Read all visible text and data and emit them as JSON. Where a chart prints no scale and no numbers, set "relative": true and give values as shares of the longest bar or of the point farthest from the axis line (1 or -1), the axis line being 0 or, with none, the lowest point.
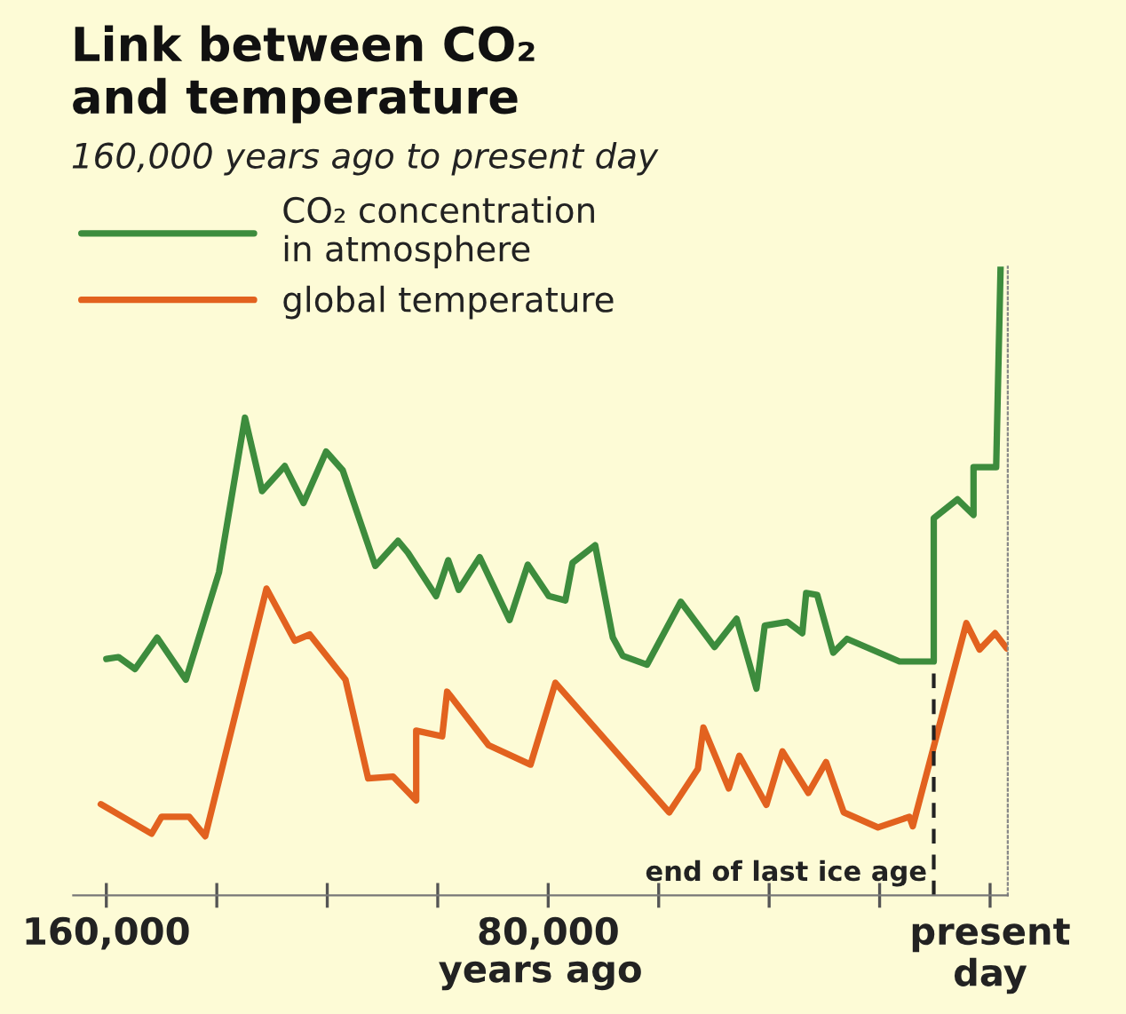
{
  "chart_data": {
    "type": "line",
    "title": "Link between CO₂\nand temperature",
    "subtitle": "160,000 years ago to present day",
    "xlabel": "years ago",
    "relative": true,
    "xlim": [
      166000,
      -3200
    ],
    "xticks": [
      {
        "value": 160000,
        "label": "160,000"
      },
      {
        "value": 140000,
        "label": null
      },
      {
        "value": 120000,
        "label": null
      },
      {
        "value": 100000,
        "label": null
      },
      {
        "value": 80000,
        "label": "80,000"
      },
      {
        "value": 60000,
        "label": null
      },
      {
        "value": 40000,
        "label": null
      },
      {
        "value": 20000,
        "label": null
      },
      {
        "value": 0,
        "label": "present\nday"
      }
    ],
    "legend": "top left",
    "grid": false,
    "marker": "none",
    "line_style": "solid",
    "ref_lines": [
      {
        "axis": "x",
        "value": 10200,
        "label": "end of last ice age",
        "line_style": "dashed",
        "color": "#222222"
      }
    ],
    "series": [
      {
        "name": "CO₂ concentration\nin atmosphere",
        "color": "#3d8c3d",
        "x": [
          160000,
          157800,
          154800,
          150800,
          145600,
          139600,
          134900,
          131800,
          127700,
          124300,
          120200,
          117200,
          111300,
          107200,
          105400,
          100300,
          98100,
          96200,
          92400,
          87000,
          83700,
          79900,
          76900,
          75600,
          71500,
          68300,
          66500,
          62100,
          56000,
          49900,
          45900,
          42300,
          40800,
          36700,
          34000,
          33300,
          31300,
          28400,
          25900,
          16400,
          10200,
          10200,
          5900,
          3000,
          3000,
          -1100,
          -1900
        ],
        "values": [
          0.376,
          0.379,
          0.36,
          0.41,
          0.343,
          0.514,
          0.76,
          0.643,
          0.683,
          0.624,
          0.706,
          0.676,
          0.524,
          0.564,
          0.545,
          0.476,
          0.533,
          0.486,
          0.538,
          0.438,
          0.526,
          0.476,
          0.469,
          0.529,
          0.557,
          0.41,
          0.381,
          0.367,
          0.467,
          0.395,
          0.44,
          0.329,
          0.429,
          0.435,
          0.417,
          0.481,
          0.478,
          0.386,
          0.408,
          0.372,
          0.372,
          0.6,
          0.63,
          0.605,
          0.681,
          0.681,
          1
        ]
      },
      {
        "name": "global temperature",
        "color": "#e2621f",
        "x": [
          161000,
          151800,
          150000,
          145000,
          142100,
          131000,
          125900,
          123200,
          116700,
          112600,
          108100,
          103900,
          103900,
          99200,
          98300,
          90800,
          83200,
          78700,
          58100,
          52900,
          51900,
          47300,
          45400,
          40500,
          37600,
          32900,
          29700,
          26500,
          20300,
          14600,
          14000,
          4300,
          1900,
          -900,
          -3000
        ],
        "values": [
          0.145,
          0.098,
          0.125,
          0.125,
          0.094,
          0.488,
          0.405,
          0.415,
          0.343,
          0.186,
          0.189,
          0.151,
          0.262,
          0.253,
          0.324,
          0.239,
          0.208,
          0.338,
          0.132,
          0.201,
          0.267,
          0.17,
          0.222,
          0.144,
          0.229,
          0.163,
          0.212,
          0.132,
          0.108,
          0.125,
          0.11,
          0.433,
          0.391,
          0.417,
          0.393
        ]
      }
    ]
  }
}
